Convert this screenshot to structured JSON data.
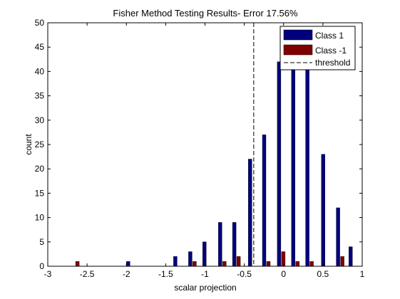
{
  "chart_data": {
    "type": "bar",
    "title": "Fisher Method Testing Results- Error 17.56%",
    "xlabel": "scalar projection",
    "ylabel": "count",
    "xlim": [
      -3,
      1
    ],
    "ylim": [
      0,
      50
    ],
    "xticks": [
      "-3",
      "-2.5",
      "-2",
      "-1.5",
      "-1",
      "-0.5",
      "0",
      "0.5",
      "1"
    ],
    "yticks": [
      "0",
      "5",
      "10",
      "15",
      "20",
      "25",
      "30",
      "35",
      "40",
      "45",
      "50"
    ],
    "grid": false,
    "legend_position": "top-right",
    "threshold": {
      "x": -0.38,
      "label": "threshold",
      "style": "dashed",
      "color": "#000000"
    },
    "series": [
      {
        "name": "Class 1",
        "color": "#00007f",
        "x": [
          -2.65,
          -1.95,
          -1.35,
          -1.16,
          -0.98,
          -0.78,
          -0.6,
          -0.4,
          -0.22,
          -0.03,
          0.15,
          0.33,
          0.53,
          0.72,
          0.88
        ],
        "values": [
          0,
          1,
          2,
          3,
          5,
          9,
          9,
          22,
          27,
          42,
          41,
          41,
          23,
          12,
          4
        ]
      },
      {
        "name": "Class -1",
        "color": "#7f0000",
        "x": [
          -2.65,
          -1.95,
          -1.35,
          -1.16,
          -0.98,
          -0.78,
          -0.6,
          -0.4,
          -0.22,
          -0.03,
          0.15,
          0.33,
          0.53,
          0.72,
          0.88
        ],
        "values": [
          1,
          0,
          0,
          1,
          0,
          1,
          2,
          0,
          1,
          3,
          1,
          1,
          0,
          2,
          0
        ]
      }
    ]
  }
}
